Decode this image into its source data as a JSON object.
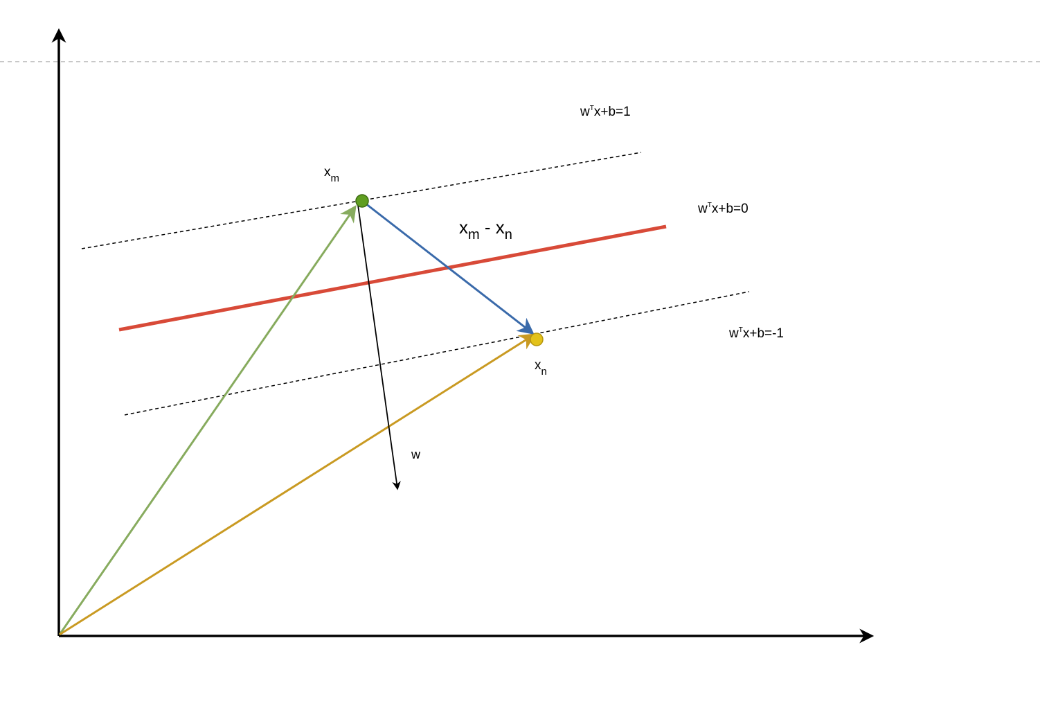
{
  "colors": {
    "axis": "#000000",
    "hyperplane": "#d84a38",
    "margin_lines": "#000000",
    "page_guide": "#b5b5b5",
    "vector_xm": "#87ab5e",
    "vector_xn": "#c99a22",
    "vector_diff": "#3a6aaa",
    "vector_w": "#000000",
    "point_xm_fill": "#5f9e20",
    "point_xn_fill": "#e3c21a"
  },
  "labels": {
    "plane_pos": {
      "pre": "w",
      "sup": "T",
      "post": "x+b=1"
    },
    "plane_zero": {
      "pre": "w",
      "sup": "T",
      "post": "x+b=0"
    },
    "plane_neg": {
      "pre": "w",
      "sup": "T",
      "post": "x+b=-1"
    },
    "point_m": {
      "base": "x",
      "sub": "m"
    },
    "point_n": {
      "base": "x",
      "sub": "n"
    },
    "difference": {
      "a_base": "x",
      "a_sub": "m",
      "op": " - ",
      "b_base": "x",
      "b_sub": "n"
    },
    "normal": "w"
  }
}
